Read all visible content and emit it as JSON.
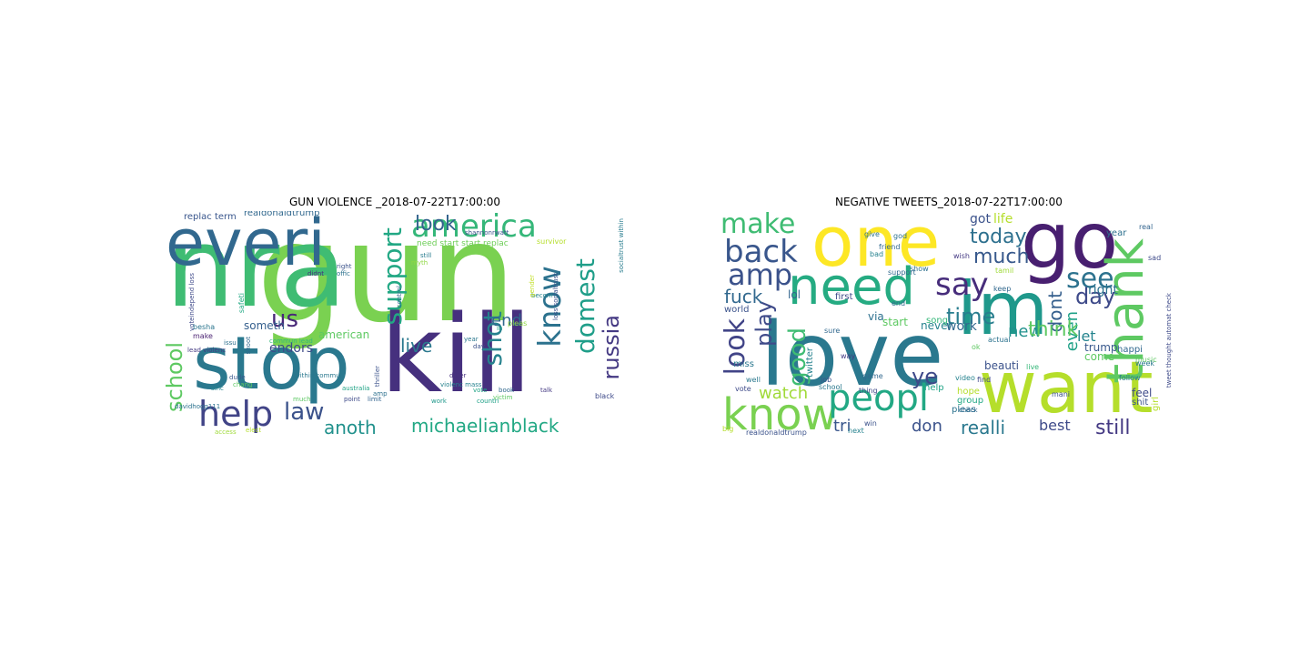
{
  "panels": [
    {
      "title": "GUN VIOLENCE _2018-07-22T17:00:00",
      "words": [
        {
          "text": "gun",
          "color": "#7ad151"
        },
        {
          "text": "nra",
          "color": "#3fbc73"
        },
        {
          "text": "kill",
          "color": "#46307e"
        },
        {
          "text": "stop",
          "color": "#2a788e"
        },
        {
          "text": "everi",
          "color": "#31688e"
        },
        {
          "text": "america",
          "color": "#35b779"
        },
        {
          "text": "support",
          "color": "#22a884"
        },
        {
          "text": "know",
          "color": "#2c728e"
        },
        {
          "text": "domest",
          "color": "#1f9e89"
        },
        {
          "text": "shot",
          "color": "#26828e"
        },
        {
          "text": "russia",
          "color": "#443983"
        },
        {
          "text": "help",
          "color": "#414487"
        },
        {
          "text": "law",
          "color": "#3b528b"
        },
        {
          "text": "school",
          "color": "#5ec962"
        },
        {
          "text": "michaelianblack",
          "color": "#22a884"
        },
        {
          "text": "anoth",
          "color": "#21918c"
        },
        {
          "text": "look",
          "color": "#33638d"
        },
        {
          "text": "live",
          "color": "#2a788e"
        },
        {
          "text": "end",
          "color": "#31688e"
        },
        {
          "text": "us",
          "color": "#482878"
        },
        {
          "text": "endors",
          "color": "#3e4a89"
        },
        {
          "text": "american",
          "color": "#5ec962"
        },
        {
          "text": "someth",
          "color": "#355f8d"
        },
        {
          "text": "replac term",
          "color": "#39568c"
        },
        {
          "text": "realdonaldtrump",
          "color": "#31688e"
        },
        {
          "text": "need start start replac",
          "color": "#6ece58"
        },
        {
          "text": "shannonrwatt",
          "color": "#3b528b"
        },
        {
          "text": "survivor",
          "color": "#b5de2b"
        },
        {
          "text": "socialtrust within",
          "color": "#287c8e"
        },
        {
          "text": "voteindepend loss",
          "color": "#3e4989"
        },
        {
          "text": "lead violenc",
          "color": "#443a83"
        },
        {
          "text": "commun lead",
          "color": "#35b779"
        },
        {
          "text": "within commun",
          "color": "#2a788e"
        },
        {
          "text": "thriller",
          "color": "#3b528b"
        },
        {
          "text": "davidhogg111",
          "color": "#2c728e"
        },
        {
          "text": "violenc mass",
          "color": "#26828e"
        },
        {
          "text": "countri",
          "color": "#1fa187"
        },
        {
          "text": "vote",
          "color": "#20a486"
        },
        {
          "text": "book",
          "color": "#31688e"
        },
        {
          "text": "talk",
          "color": "#443983"
        },
        {
          "text": "work",
          "color": "#1f988b"
        },
        {
          "text": "black",
          "color": "#3e4a89"
        },
        {
          "text": "dude",
          "color": "#38588c"
        },
        {
          "text": "sinc",
          "color": "#25848e"
        },
        {
          "text": "much",
          "color": "#5cc863"
        },
        {
          "text": "issu",
          "color": "#2d708e"
        },
        {
          "text": "make",
          "color": "#481f70"
        },
        {
          "text": "besha",
          "color": "#2b758e"
        },
        {
          "text": "shoot",
          "color": "#31688e"
        },
        {
          "text": "safeti",
          "color": "#22a884"
        },
        {
          "text": "right",
          "color": "#3b528b"
        },
        {
          "text": "didnt",
          "color": "#472d7b"
        },
        {
          "text": "offic",
          "color": "#2c728e"
        },
        {
          "text": "still",
          "color": "#287c8e"
        },
        {
          "text": "becom",
          "color": "#25848e"
        },
        {
          "text": "differ",
          "color": "#46307e"
        },
        {
          "text": "pleas",
          "color": "#8fd744"
        },
        {
          "text": "control",
          "color": "#31688e"
        },
        {
          "text": "gender",
          "color": "#c2df23"
        },
        {
          "text": "day",
          "color": "#3b528b"
        },
        {
          "text": "year",
          "color": "#2a788e"
        },
        {
          "text": "point",
          "color": "#3e4a89"
        },
        {
          "text": "australia",
          "color": "#20a386"
        },
        {
          "text": "chang",
          "color": "#5ec962"
        },
        {
          "text": "limit",
          "color": "#32648e"
        },
        {
          "text": "access",
          "color": "#9fda3a"
        },
        {
          "text": "elect",
          "color": "#b5de2b"
        },
        {
          "text": "loss socialtrust",
          "color": "#3b528b"
        },
        {
          "text": "amp",
          "color": "#2d708e"
        },
        {
          "text": "victim",
          "color": "#5ec962"
        },
        {
          "text": "in",
          "color": "#1fa187"
        },
        {
          "text": "myth",
          "color": "#8fd744"
        }
      ]
    },
    {
      "title": "NEGATIVE TWEETS_2018-07-22T17:00:00",
      "words": [
        {
          "text": "one",
          "color": "#fde725"
        },
        {
          "text": "go",
          "color": "#481f70"
        },
        {
          "text": "love",
          "color": "#2a788e"
        },
        {
          "text": "im",
          "color": "#1f988b"
        },
        {
          "text": "want",
          "color": "#b5de2b"
        },
        {
          "text": "need",
          "color": "#25ab82"
        },
        {
          "text": "thank",
          "color": "#5ec962"
        },
        {
          "text": "know",
          "color": "#7ad151"
        },
        {
          "text": "peopl",
          "color": "#22a884"
        },
        {
          "text": "say",
          "color": "#472d7b"
        },
        {
          "text": "make",
          "color": "#3fbc73"
        },
        {
          "text": "back",
          "color": "#39568c"
        },
        {
          "text": "amp",
          "color": "#3b528b"
        },
        {
          "text": "see",
          "color": "#2c728e"
        },
        {
          "text": "look",
          "color": "#414487"
        },
        {
          "text": "play",
          "color": "#3e4a89"
        },
        {
          "text": "fuck",
          "color": "#31688e"
        },
        {
          "text": "time",
          "color": "#287d8e"
        },
        {
          "text": "much",
          "color": "#38598c"
        },
        {
          "text": "today",
          "color": "#2d708e"
        },
        {
          "text": "day",
          "color": "#3e4a89"
        },
        {
          "text": "dont",
          "color": "#355f8d"
        },
        {
          "text": "even",
          "color": "#1fa187"
        },
        {
          "text": "good",
          "color": "#3fbc73"
        },
        {
          "text": "new",
          "color": "#21918c"
        },
        {
          "text": "think",
          "color": "#5ec962"
        },
        {
          "text": "watch",
          "color": "#a0da39"
        },
        {
          "text": "tri",
          "color": "#39568c"
        },
        {
          "text": "don",
          "color": "#3b528b"
        },
        {
          "text": "realli",
          "color": "#2a788e"
        },
        {
          "text": "best",
          "color": "#3e4a89"
        },
        {
          "text": "still",
          "color": "#443983"
        },
        {
          "text": "ye",
          "color": "#3e4989"
        },
        {
          "text": "let",
          "color": "#25848e"
        },
        {
          "text": "right",
          "color": "#2c728e"
        },
        {
          "text": "life",
          "color": "#b5de2b"
        },
        {
          "text": "got",
          "color": "#3b528b"
        },
        {
          "text": "lol",
          "color": "#32648e"
        },
        {
          "text": "via",
          "color": "#2d708e"
        },
        {
          "text": "never",
          "color": "#26828e"
        },
        {
          "text": "song",
          "color": "#35b779"
        },
        {
          "text": "start",
          "color": "#5ec962"
        },
        {
          "text": "work",
          "color": "#31688e"
        },
        {
          "text": "trump",
          "color": "#38588c"
        },
        {
          "text": "come",
          "color": "#5ec962"
        },
        {
          "text": "beauti",
          "color": "#3b528b"
        },
        {
          "text": "hope",
          "color": "#b5de2b"
        },
        {
          "text": "help",
          "color": "#20a486"
        },
        {
          "text": "pleas",
          "color": "#2c728e"
        },
        {
          "text": "group",
          "color": "#22a884"
        },
        {
          "text": "first",
          "color": "#3e4a89"
        },
        {
          "text": "support",
          "color": "#31688e"
        },
        {
          "text": "twitter",
          "color": "#26828e"
        },
        {
          "text": "world",
          "color": "#3b528b"
        },
        {
          "text": "miss",
          "color": "#2a788e"
        },
        {
          "text": "sure",
          "color": "#31688e"
        },
        {
          "text": "feel",
          "color": "#3e4a89"
        },
        {
          "text": "year",
          "color": "#2d708e"
        },
        {
          "text": "girl",
          "color": "#b5de2b"
        },
        {
          "text": "shit",
          "color": "#3b528b"
        },
        {
          "text": "happi",
          "color": "#31688e"
        },
        {
          "text": "school",
          "color": "#2a788e"
        },
        {
          "text": "thing",
          "color": "#3e4a89"
        },
        {
          "text": "video",
          "color": "#26828e"
        },
        {
          "text": "realdonaldtrump",
          "color": "#3b528b"
        },
        {
          "text": "game",
          "color": "#31688e"
        },
        {
          "text": "actual",
          "color": "#2c728e"
        },
        {
          "text": "live",
          "color": "#35b779"
        },
        {
          "text": "follow",
          "color": "#2a788e"
        },
        {
          "text": "find",
          "color": "#3e4a89"
        },
        {
          "text": "music",
          "color": "#5ec962"
        },
        {
          "text": "real",
          "color": "#32648e"
        },
        {
          "text": "show",
          "color": "#2d708e"
        },
        {
          "text": "wish",
          "color": "#443983"
        },
        {
          "text": "tamil",
          "color": "#9fda3a"
        },
        {
          "text": "win",
          "color": "#3b528b"
        },
        {
          "text": "next",
          "color": "#26828e"
        },
        {
          "text": "check",
          "color": "#31688e"
        },
        {
          "text": "week",
          "color": "#2a788e"
        },
        {
          "text": "tweet thought automat check",
          "color": "#3e4a89"
        },
        {
          "text": "ok",
          "color": "#5ec962"
        },
        {
          "text": "keep",
          "color": "#31688e"
        },
        {
          "text": "job",
          "color": "#3b528b"
        },
        {
          "text": "god",
          "color": "#2d708e"
        },
        {
          "text": "way",
          "color": "#443983"
        },
        {
          "text": "well",
          "color": "#2a788e"
        },
        {
          "text": "vote",
          "color": "#3e4a89"
        },
        {
          "text": "big",
          "color": "#b5de2b"
        },
        {
          "text": "mani",
          "color": "#3b528b"
        },
        {
          "text": "friend",
          "color": "#31688e"
        },
        {
          "text": "bad",
          "color": "#26828e"
        },
        {
          "text": "sad",
          "color": "#3e4a89"
        },
        {
          "text": "give",
          "color": "#2c728e"
        },
        {
          "text": "end",
          "color": "#31688e"
        }
      ]
    }
  ]
}
